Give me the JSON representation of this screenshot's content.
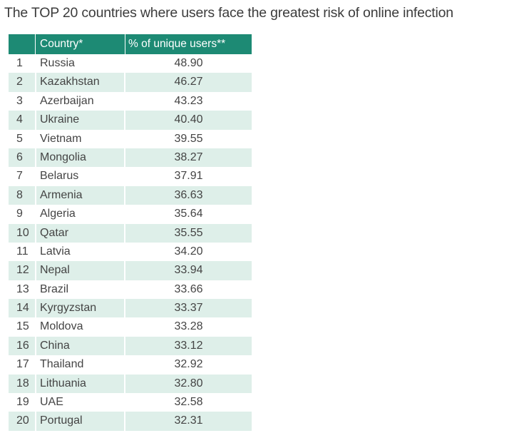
{
  "title": "The TOP 20 countries where users face the greatest risk of online infection",
  "colors": {
    "header_bg": "#1d8a74",
    "header_text": "#ffffff",
    "stripe_bg": "#deefe9",
    "text": "#444444"
  },
  "chart_data": {
    "type": "table",
    "title": "The TOP 20 countries where users face the greatest risk of online infection",
    "columns": [
      "",
      "Country*",
      "% of unique users**"
    ],
    "rows": [
      {
        "rank": "1",
        "country": "Russia",
        "value": "48.90"
      },
      {
        "rank": "2",
        "country": "Kazakhstan",
        "value": "46.27"
      },
      {
        "rank": "3",
        "country": "Azerbaijan",
        "value": "43.23"
      },
      {
        "rank": "4",
        "country": "Ukraine",
        "value": "40.40"
      },
      {
        "rank": "5",
        "country": "Vietnam",
        "value": "39.55"
      },
      {
        "rank": "6",
        "country": "Mongolia",
        "value": "38.27"
      },
      {
        "rank": "7",
        "country": "Belarus",
        "value": "37.91"
      },
      {
        "rank": "8",
        "country": "Armenia",
        "value": "36.63"
      },
      {
        "rank": "9",
        "country": "Algeria",
        "value": "35.64"
      },
      {
        "rank": "10",
        "country": "Qatar",
        "value": "35.55"
      },
      {
        "rank": "11",
        "country": "Latvia",
        "value": "34.20"
      },
      {
        "rank": "12",
        "country": "Nepal",
        "value": "33.94"
      },
      {
        "rank": "13",
        "country": "Brazil",
        "value": "33.66"
      },
      {
        "rank": "14",
        "country": "Kyrgyzstan",
        "value": "33.37"
      },
      {
        "rank": "15",
        "country": "Moldova",
        "value": "33.28"
      },
      {
        "rank": "16",
        "country": "China",
        "value": "33.12"
      },
      {
        "rank": "17",
        "country": "Thailand",
        "value": "32.92"
      },
      {
        "rank": "18",
        "country": "Lithuania",
        "value": "32.80"
      },
      {
        "rank": "19",
        "country": "UAE",
        "value": "32.58"
      },
      {
        "rank": "20",
        "country": "Portugal",
        "value": "32.31"
      }
    ]
  }
}
